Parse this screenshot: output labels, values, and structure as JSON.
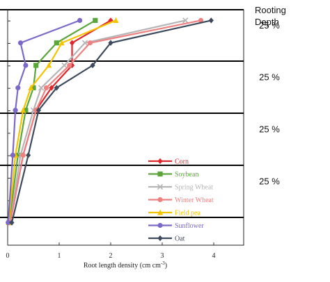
{
  "chart_data": {
    "type": "line",
    "title": "",
    "xlabel": "Root length density (cm cm",
    "xlabel_sup": "-3",
    "xlabel_close": ")",
    "ylabel": "",
    "xlim": [
      0,
      4.5
    ],
    "x_ticks": [
      0,
      1,
      2,
      3,
      4
    ],
    "depth_levels": [
      1,
      2,
      3,
      4,
      5,
      6,
      7,
      8,
      9
    ],
    "grid": false,
    "legend_position": "bottom-right",
    "depth_column": {
      "header_line1": "Rooting",
      "header_line2": "Depth",
      "labels": [
        "25 %",
        "25 %",
        "25 %",
        "25 %"
      ]
    },
    "series": [
      {
        "name": "Corn",
        "color": "#e0262b",
        "marker": "diamond",
        "points": [
          [
            2.0,
            1
          ],
          [
            1.25,
            3
          ],
          [
            1.25,
            5
          ],
          [
            0.85,
            7
          ],
          [
            0.55,
            9
          ],
          [
            0.3,
            13
          ],
          [
            0.05,
            19
          ]
        ]
      },
      {
        "name": "Soybean",
        "color": "#5aa63a",
        "marker": "square",
        "points": [
          [
            1.7,
            1
          ],
          [
            0.95,
            3
          ],
          [
            0.55,
            5
          ],
          [
            0.5,
            7
          ],
          [
            0.35,
            9
          ],
          [
            0.2,
            13
          ],
          [
            0.03,
            19
          ]
        ]
      },
      {
        "name": "Spring Wheat",
        "color": "#b5b5b5",
        "marker": "x",
        "points": [
          [
            3.45,
            1
          ],
          [
            1.5,
            3
          ],
          [
            1.1,
            5
          ],
          [
            0.65,
            7
          ],
          [
            0.5,
            9
          ],
          [
            0.25,
            13
          ],
          [
            0.05,
            19
          ]
        ]
      },
      {
        "name": "Winter Wheat",
        "color": "#f08080",
        "marker": "circle",
        "points": [
          [
            3.75,
            1
          ],
          [
            1.6,
            3
          ],
          [
            1.2,
            5
          ],
          [
            0.75,
            7
          ],
          [
            0.55,
            9
          ],
          [
            0.3,
            13
          ],
          [
            0.05,
            19
          ]
        ]
      },
      {
        "name": "Field pea",
        "color": "#f5c400",
        "marker": "triangle",
        "points": [
          [
            2.1,
            1
          ],
          [
            1.05,
            3
          ],
          [
            0.8,
            5
          ],
          [
            0.45,
            7
          ],
          [
            0.3,
            9
          ],
          [
            0.15,
            13
          ],
          [
            0.02,
            19
          ]
        ]
      },
      {
        "name": "Sunflower",
        "color": "#7b68c8",
        "marker": "circle",
        "points": [
          [
            1.4,
            1
          ],
          [
            0.25,
            3
          ],
          [
            0.35,
            5
          ],
          [
            0.2,
            7
          ],
          [
            0.15,
            9
          ],
          [
            0.1,
            13
          ],
          [
            0.01,
            19
          ]
        ]
      },
      {
        "name": "Oat",
        "color": "#3d4a5c",
        "marker": "diamond",
        "points": [
          [
            3.95,
            1
          ],
          [
            2.0,
            3
          ],
          [
            1.65,
            5
          ],
          [
            0.95,
            7
          ],
          [
            0.6,
            9
          ],
          [
            0.4,
            13
          ],
          [
            0.08,
            19
          ]
        ]
      }
    ]
  }
}
